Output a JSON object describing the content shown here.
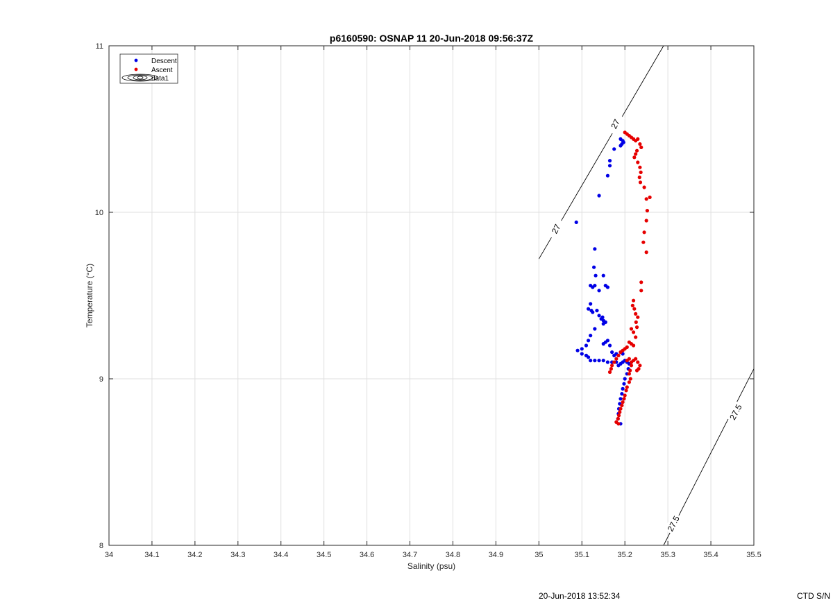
{
  "chart_data": {
    "type": "scatter",
    "title": "p6160590: OSNAP 11 20-Jun-2018 09:56:37Z",
    "xlabel": "Salinity (psu)",
    "ylabel": "Temperature (°C)",
    "xlim": [
      34,
      35.5
    ],
    "ylim": [
      8,
      11
    ],
    "x_ticks": [
      "34",
      "34.1",
      "34.2",
      "34.3",
      "34.4",
      "34.5",
      "34.6",
      "34.7",
      "34.8",
      "34.9",
      "35",
      "35.1",
      "35.2",
      "35.3",
      "35.4",
      "35.5"
    ],
    "y_ticks": [
      "8",
      "9",
      "10",
      "11"
    ],
    "grid": true,
    "legend_placement": "top-left",
    "legend": [
      "Descent",
      "Ascent",
      "data1"
    ],
    "contours": [
      {
        "level": "27",
        "points": [
          [
            35.0,
            9.72
          ],
          [
            35.29,
            11.0
          ]
        ]
      },
      {
        "level": "27.5",
        "points": [
          [
            35.29,
            8.0
          ],
          [
            35.5,
            9.06
          ]
        ]
      }
    ],
    "contour_labels": [
      {
        "text": "27",
        "x": 35.04,
        "y": 9.9
      },
      {
        "text": "27",
        "x": 35.178,
        "y": 10.53
      },
      {
        "text": "27.5",
        "x": 35.313,
        "y": 8.13
      },
      {
        "text": "27.5",
        "x": 35.458,
        "y": 8.8
      }
    ],
    "series": [
      {
        "name": "Descent",
        "color": "#0000e6",
        "points": [
          [
            35.19,
            10.44
          ],
          [
            35.193,
            10.41
          ],
          [
            35.195,
            10.43
          ],
          [
            35.197,
            10.42
          ],
          [
            35.19,
            10.4
          ],
          [
            35.175,
            10.38
          ],
          [
            35.165,
            10.31
          ],
          [
            35.165,
            10.28
          ],
          [
            35.16,
            10.22
          ],
          [
            35.14,
            10.1
          ],
          [
            35.087,
            9.94
          ],
          [
            35.13,
            9.78
          ],
          [
            35.128,
            9.67
          ],
          [
            35.132,
            9.62
          ],
          [
            35.15,
            9.62
          ],
          [
            35.12,
            9.56
          ],
          [
            35.125,
            9.55
          ],
          [
            35.13,
            9.56
          ],
          [
            35.14,
            9.53
          ],
          [
            35.155,
            9.56
          ],
          [
            35.16,
            9.55
          ],
          [
            35.12,
            9.45
          ],
          [
            35.115,
            9.42
          ],
          [
            35.122,
            9.41
          ],
          [
            35.125,
            9.4
          ],
          [
            35.135,
            9.41
          ],
          [
            35.14,
            9.38
          ],
          [
            35.15,
            9.35
          ],
          [
            35.145,
            9.36
          ],
          [
            35.15,
            9.33
          ],
          [
            35.155,
            9.34
          ],
          [
            35.148,
            9.37
          ],
          [
            35.13,
            9.3
          ],
          [
            35.12,
            9.26
          ],
          [
            35.115,
            9.23
          ],
          [
            35.11,
            9.2
          ],
          [
            35.1,
            9.18
          ],
          [
            35.09,
            9.17
          ],
          [
            35.1,
            9.15
          ],
          [
            35.11,
            9.14
          ],
          [
            35.115,
            9.13
          ],
          [
            35.12,
            9.11
          ],
          [
            35.13,
            9.11
          ],
          [
            35.14,
            9.11
          ],
          [
            35.15,
            9.11
          ],
          [
            35.155,
            9.22
          ],
          [
            35.16,
            9.23
          ],
          [
            35.15,
            9.21
          ],
          [
            35.165,
            9.2
          ],
          [
            35.17,
            9.16
          ],
          [
            35.175,
            9.14
          ],
          [
            35.18,
            9.15
          ],
          [
            35.185,
            9.14
          ],
          [
            35.19,
            9.16
          ],
          [
            35.195,
            9.15
          ],
          [
            35.16,
            9.1
          ],
          [
            35.17,
            9.1
          ],
          [
            35.18,
            9.1
          ],
          [
            35.185,
            9.08
          ],
          [
            35.19,
            9.09
          ],
          [
            35.195,
            9.1
          ],
          [
            35.2,
            9.11
          ],
          [
            35.205,
            9.1
          ],
          [
            35.21,
            9.09
          ],
          [
            35.208,
            9.06
          ],
          [
            35.205,
            9.03
          ],
          [
            35.2,
            9.0
          ],
          [
            35.198,
            8.97
          ],
          [
            35.195,
            8.94
          ],
          [
            35.193,
            8.91
          ],
          [
            35.19,
            8.88
          ],
          [
            35.188,
            8.85
          ],
          [
            35.186,
            8.82
          ],
          [
            35.185,
            8.79
          ],
          [
            35.184,
            8.76
          ],
          [
            35.19,
            8.73
          ]
        ]
      },
      {
        "name": "Ascent",
        "color": "#e60000",
        "points": [
          [
            35.2,
            10.48
          ],
          [
            35.205,
            10.47
          ],
          [
            35.21,
            10.46
          ],
          [
            35.215,
            10.45
          ],
          [
            35.22,
            10.44
          ],
          [
            35.225,
            10.43
          ],
          [
            35.23,
            10.44
          ],
          [
            35.235,
            10.41
          ],
          [
            35.238,
            10.39
          ],
          [
            35.228,
            10.37
          ],
          [
            35.225,
            10.35
          ],
          [
            35.222,
            10.33
          ],
          [
            35.23,
            10.3
          ],
          [
            35.235,
            10.27
          ],
          [
            35.237,
            10.24
          ],
          [
            35.234,
            10.21
          ],
          [
            35.236,
            10.18
          ],
          [
            35.245,
            10.15
          ],
          [
            35.25,
            10.08
          ],
          [
            35.252,
            10.01
          ],
          [
            35.258,
            10.09
          ],
          [
            35.25,
            9.95
          ],
          [
            35.245,
            9.88
          ],
          [
            35.243,
            9.82
          ],
          [
            35.25,
            9.76
          ],
          [
            35.238,
            9.58
          ],
          [
            35.238,
            9.53
          ],
          [
            35.22,
            9.47
          ],
          [
            35.218,
            9.44
          ],
          [
            35.222,
            9.42
          ],
          [
            35.225,
            9.39
          ],
          [
            35.23,
            9.37
          ],
          [
            35.226,
            9.34
          ],
          [
            35.228,
            9.31
          ],
          [
            35.215,
            9.3
          ],
          [
            35.22,
            9.28
          ],
          [
            35.225,
            9.25
          ],
          [
            35.21,
            9.22
          ],
          [
            35.215,
            9.21
          ],
          [
            35.22,
            9.2
          ],
          [
            35.205,
            9.19
          ],
          [
            35.2,
            9.18
          ],
          [
            35.195,
            9.17
          ],
          [
            35.19,
            9.16
          ],
          [
            35.185,
            9.14
          ],
          [
            35.18,
            9.12
          ],
          [
            35.175,
            9.1
          ],
          [
            35.17,
            9.08
          ],
          [
            35.168,
            9.06
          ],
          [
            35.165,
            9.04
          ],
          [
            35.205,
            9.11
          ],
          [
            35.21,
            9.12
          ],
          [
            35.215,
            9.1
          ],
          [
            35.22,
            9.11
          ],
          [
            35.225,
            9.12
          ],
          [
            35.23,
            9.1
          ],
          [
            35.235,
            9.08
          ],
          [
            35.232,
            9.06
          ],
          [
            35.228,
            9.05
          ],
          [
            35.215,
            9.08
          ],
          [
            35.212,
            9.05
          ],
          [
            35.21,
            9.03
          ],
          [
            35.213,
            9.0
          ],
          [
            35.21,
            8.98
          ],
          [
            35.205,
            8.95
          ],
          [
            35.203,
            8.93
          ],
          [
            35.2,
            8.9
          ],
          [
            35.198,
            8.88
          ],
          [
            35.195,
            8.86
          ],
          [
            35.193,
            8.84
          ],
          [
            35.19,
            8.82
          ],
          [
            35.188,
            8.8
          ],
          [
            35.186,
            8.78
          ],
          [
            35.184,
            8.76
          ],
          [
            35.18,
            8.74
          ],
          [
            35.185,
            8.73
          ]
        ]
      }
    ]
  },
  "footer": {
    "timestamp": "20-Jun-2018 13:52:34",
    "serial": "CTD S/N"
  }
}
